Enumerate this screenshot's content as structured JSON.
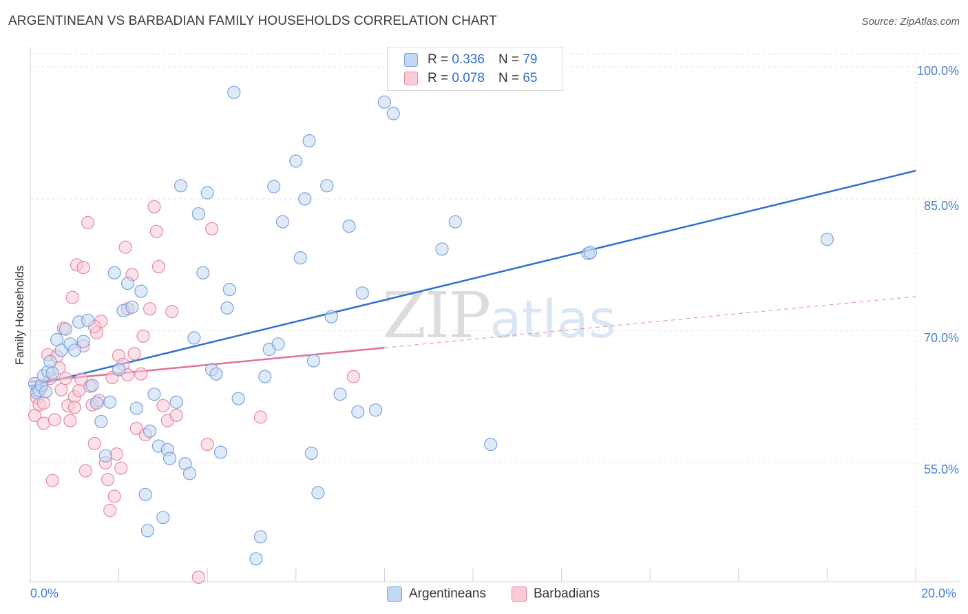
{
  "title": "ARGENTINEAN VS BARBADIAN FAMILY HOUSEHOLDS CORRELATION CHART",
  "source": "Source: ZipAtlas.com",
  "watermark": {
    "zip": "ZIP",
    "atlas": "atlas"
  },
  "colors": {
    "blue_stroke": "#7aa2dc",
    "blue_fill": "#c5d8f3",
    "blue_line": "#2f6fd0",
    "pink_stroke": "#e8889f",
    "pink_fill": "#f8cbd6",
    "pink_line": "#e0709a",
    "grid": "#e4e4e4",
    "tick_text": "#4a7fd0"
  },
  "legend": {
    "rows": [
      {
        "r_label": "R =",
        "r_value": "0.336",
        "n_label": "N =",
        "n_value": "79"
      },
      {
        "r_label": "R =",
        "r_value": "0.078",
        "n_label": "N =",
        "n_value": "65"
      }
    ]
  },
  "bottom_legend": {
    "argentineans": "Argentineans",
    "barbadians": "Barbadians"
  },
  "chart_data": {
    "type": "scatter",
    "title": "ARGENTINEAN VS BARBADIAN FAMILY HOUSEHOLDS CORRELATION CHART",
    "xlabel": "",
    "ylabel": "Family Households",
    "xlim": [
      0,
      20
    ],
    "ylim": [
      41.5,
      101.5
    ],
    "x_tick_labels": [
      "0.0%",
      "20.0%"
    ],
    "y_ticks": [
      55,
      70,
      85,
      100
    ],
    "y_tick_labels": [
      "55.0%",
      "70.0%",
      "85.0%",
      "100.0%"
    ],
    "grid": true,
    "series": [
      {
        "name": "Argentineans",
        "r": 0.336,
        "n": 79,
        "trend": {
          "x": [
            0,
            20
          ],
          "y": [
            63.7,
            88.2
          ],
          "dashed_until": null
        },
        "points": [
          [
            0.1,
            64.0
          ],
          [
            0.15,
            63.0
          ],
          [
            0.2,
            63.2
          ],
          [
            0.25,
            63.8
          ],
          [
            0.3,
            64.9
          ],
          [
            0.35,
            63.1
          ],
          [
            0.4,
            65.4
          ],
          [
            0.45,
            66.5
          ],
          [
            0.5,
            65.2
          ],
          [
            0.6,
            69.0
          ],
          [
            0.7,
            67.8
          ],
          [
            0.8,
            70.2
          ],
          [
            0.9,
            68.5
          ],
          [
            1.0,
            67.8
          ],
          [
            1.1,
            71.0
          ],
          [
            1.2,
            68.8
          ],
          [
            1.3,
            71.2
          ],
          [
            1.4,
            63.8
          ],
          [
            1.5,
            61.8
          ],
          [
            1.6,
            59.7
          ],
          [
            1.7,
            55.8
          ],
          [
            1.8,
            61.9
          ],
          [
            1.9,
            76.6
          ],
          [
            2.0,
            65.6
          ],
          [
            2.1,
            72.3
          ],
          [
            2.2,
            75.4
          ],
          [
            2.3,
            72.7
          ],
          [
            2.4,
            61.2
          ],
          [
            2.5,
            74.5
          ],
          [
            2.6,
            51.4
          ],
          [
            2.65,
            47.3
          ],
          [
            2.7,
            58.6
          ],
          [
            2.8,
            62.8
          ],
          [
            2.9,
            56.9
          ],
          [
            3.0,
            48.8
          ],
          [
            3.1,
            56.5
          ],
          [
            3.15,
            55.5
          ],
          [
            3.3,
            61.9
          ],
          [
            3.4,
            86.5
          ],
          [
            3.5,
            54.9
          ],
          [
            3.6,
            53.8
          ],
          [
            3.7,
            69.2
          ],
          [
            3.8,
            83.3
          ],
          [
            3.9,
            76.6
          ],
          [
            4.0,
            85.7
          ],
          [
            4.1,
            65.6
          ],
          [
            4.2,
            65.1
          ],
          [
            4.3,
            56.2
          ],
          [
            4.5,
            74.7
          ],
          [
            4.45,
            72.6
          ],
          [
            4.6,
            97.1
          ],
          [
            4.7,
            62.3
          ],
          [
            5.2,
            46.6
          ],
          [
            5.1,
            44.1
          ],
          [
            5.3,
            64.8
          ],
          [
            5.4,
            67.9
          ],
          [
            5.5,
            86.4
          ],
          [
            5.6,
            68.5
          ],
          [
            5.7,
            82.4
          ],
          [
            6.0,
            89.3
          ],
          [
            6.1,
            78.3
          ],
          [
            6.2,
            85.0
          ],
          [
            6.3,
            91.6
          ],
          [
            6.35,
            56.1
          ],
          [
            6.4,
            66.6
          ],
          [
            6.5,
            51.6
          ],
          [
            6.7,
            86.5
          ],
          [
            6.8,
            71.6
          ],
          [
            7.0,
            62.8
          ],
          [
            7.2,
            81.9
          ],
          [
            7.4,
            60.8
          ],
          [
            7.5,
            74.3
          ],
          [
            7.8,
            61.0
          ],
          [
            8.0,
            96.0
          ],
          [
            8.2,
            94.7
          ],
          [
            9.3,
            79.3
          ],
          [
            9.6,
            82.4
          ],
          [
            10.4,
            57.1
          ],
          [
            12.6,
            78.8
          ],
          [
            12.65,
            78.9
          ],
          [
            18.0,
            80.4
          ]
        ]
      },
      {
        "name": "Barbadians",
        "r": 0.078,
        "n": 65,
        "trend": {
          "x": [
            0,
            20
          ],
          "y": [
            64.2,
            73.9
          ],
          "dashed_from": 8.0
        },
        "points": [
          [
            0.1,
            60.4
          ],
          [
            0.15,
            62.4
          ],
          [
            0.2,
            61.6
          ],
          [
            0.25,
            63.6
          ],
          [
            0.3,
            59.5
          ],
          [
            0.4,
            67.3
          ],
          [
            0.45,
            64.6
          ],
          [
            0.5,
            53.0
          ],
          [
            0.55,
            59.9
          ],
          [
            0.6,
            67.1
          ],
          [
            0.7,
            63.3
          ],
          [
            0.75,
            70.3
          ],
          [
            0.8,
            64.6
          ],
          [
            0.85,
            61.5
          ],
          [
            0.9,
            59.8
          ],
          [
            0.95,
            73.8
          ],
          [
            1.0,
            62.5
          ],
          [
            1.05,
            77.5
          ],
          [
            1.1,
            63.2
          ],
          [
            1.15,
            64.5
          ],
          [
            1.2,
            68.3
          ],
          [
            1.25,
            54.1
          ],
          [
            1.3,
            82.3
          ],
          [
            1.35,
            63.7
          ],
          [
            1.4,
            61.6
          ],
          [
            1.45,
            57.2
          ],
          [
            1.5,
            69.8
          ],
          [
            1.55,
            62.1
          ],
          [
            1.6,
            71.1
          ],
          [
            1.7,
            55.0
          ],
          [
            1.75,
            53.1
          ],
          [
            1.8,
            49.6
          ],
          [
            1.85,
            64.7
          ],
          [
            1.9,
            51.2
          ],
          [
            1.95,
            56.0
          ],
          [
            2.0,
            67.2
          ],
          [
            2.05,
            54.4
          ],
          [
            2.1,
            66.2
          ],
          [
            2.15,
            79.5
          ],
          [
            2.2,
            72.5
          ],
          [
            2.3,
            76.4
          ],
          [
            2.35,
            67.4
          ],
          [
            2.4,
            58.9
          ],
          [
            2.5,
            65.1
          ],
          [
            2.55,
            69.4
          ],
          [
            2.6,
            58.2
          ],
          [
            2.7,
            72.5
          ],
          [
            2.8,
            84.1
          ],
          [
            2.85,
            81.3
          ],
          [
            2.9,
            77.3
          ],
          [
            3.0,
            61.5
          ],
          [
            3.1,
            59.8
          ],
          [
            3.2,
            72.2
          ],
          [
            3.3,
            60.4
          ],
          [
            3.8,
            42.0
          ],
          [
            4.0,
            57.1
          ],
          [
            4.1,
            81.6
          ],
          [
            5.2,
            60.2
          ],
          [
            7.3,
            64.8
          ],
          [
            1.2,
            77.2
          ],
          [
            0.65,
            65.8
          ],
          [
            1.0,
            61.3
          ],
          [
            0.3,
            61.8
          ],
          [
            2.2,
            65.0
          ],
          [
            1.45,
            70.5
          ]
        ]
      }
    ]
  }
}
